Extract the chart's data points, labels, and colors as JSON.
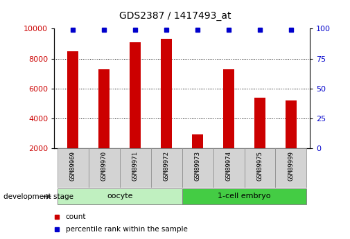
{
  "title": "GDS2387 / 1417493_at",
  "samples": [
    "GSM89969",
    "GSM89970",
    "GSM89971",
    "GSM89972",
    "GSM89973",
    "GSM89974",
    "GSM89975",
    "GSM89999"
  ],
  "counts": [
    8500,
    7300,
    9100,
    9300,
    2900,
    7300,
    5400,
    5200
  ],
  "percentiles": [
    99,
    99,
    99,
    99,
    99,
    99,
    99,
    99
  ],
  "ylim_left": [
    2000,
    10000
  ],
  "ylim_right": [
    0,
    100
  ],
  "yticks_left": [
    2000,
    4000,
    6000,
    8000,
    10000
  ],
  "yticks_right": [
    0,
    25,
    50,
    75,
    100
  ],
  "bar_color": "#cc0000",
  "percentile_color": "#0000cc",
  "grid_color": "#000000",
  "oocyte_color": "#c0f0c0",
  "embryo_color": "#44cc44",
  "label_box_color": "#d3d3d3",
  "legend_count_label": "count",
  "legend_pct_label": "percentile rank within the sample",
  "dev_stage_label": "development stage",
  "tick_label_color_left": "#cc0000",
  "tick_label_color_right": "#0000cc",
  "oocyte_group": {
    "label": "oocyte",
    "start": 0,
    "end": 3
  },
  "embryo_group": {
    "label": "1-cell embryo",
    "start": 4,
    "end": 7
  }
}
